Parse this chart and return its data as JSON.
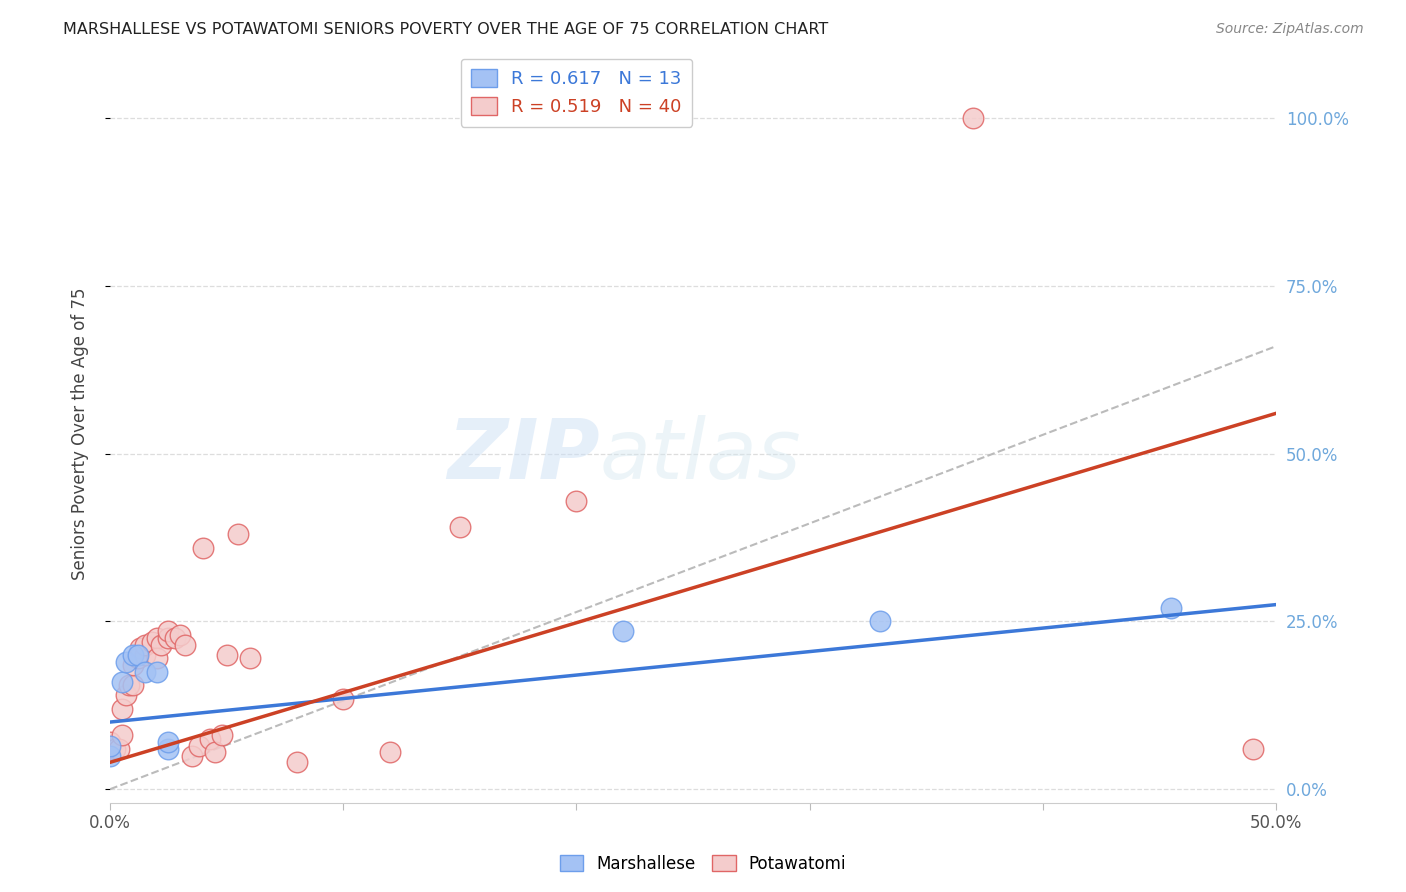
{
  "title": "MARSHALLESE VS POTAWATOMI SENIORS POVERTY OVER THE AGE OF 75 CORRELATION CHART",
  "source": "Source: ZipAtlas.com",
  "ylabel": "Seniors Poverty Over the Age of 75",
  "xlim": [
    0.0,
    0.5
  ],
  "ylim": [
    -0.02,
    1.08
  ],
  "xticks": [
    0.0,
    0.1,
    0.2,
    0.3,
    0.4,
    0.5
  ],
  "xtick_labels": [
    "0.0%",
    "",
    "",
    "",
    "",
    "50.0%"
  ],
  "yticks": [
    0.0,
    0.25,
    0.5,
    0.75,
    1.0
  ],
  "ytick_labels_right": [
    "0.0%",
    "25.0%",
    "50.0%",
    "75.0%",
    "100.0%"
  ],
  "marshallese_color": "#a4c2f4",
  "potawatomi_color": "#f4cccc",
  "marshallese_edge_color": "#6d9eeb",
  "potawatomi_edge_color": "#e06666",
  "marshallese_line_color": "#3c78d8",
  "potawatomi_line_color": "#cc4125",
  "marshallese_R": 0.617,
  "marshallese_N": 13,
  "potawatomi_R": 0.519,
  "potawatomi_N": 40,
  "marshallese_x": [
    0.0,
    0.0,
    0.005,
    0.007,
    0.01,
    0.012,
    0.015,
    0.02,
    0.025,
    0.025,
    0.22,
    0.33,
    0.455
  ],
  "marshallese_y": [
    0.05,
    0.065,
    0.16,
    0.19,
    0.2,
    0.2,
    0.175,
    0.175,
    0.06,
    0.07,
    0.235,
    0.25,
    0.27
  ],
  "potawatomi_x": [
    0.0,
    0.0,
    0.0,
    0.002,
    0.004,
    0.005,
    0.005,
    0.007,
    0.008,
    0.01,
    0.01,
    0.012,
    0.013,
    0.015,
    0.015,
    0.018,
    0.02,
    0.02,
    0.022,
    0.025,
    0.025,
    0.028,
    0.03,
    0.032,
    0.035,
    0.038,
    0.04,
    0.043,
    0.045,
    0.048,
    0.05,
    0.055,
    0.06,
    0.08,
    0.1,
    0.12,
    0.15,
    0.2,
    0.37,
    0.49
  ],
  "potawatomi_y": [
    0.06,
    0.065,
    0.07,
    0.06,
    0.06,
    0.12,
    0.08,
    0.14,
    0.155,
    0.155,
    0.185,
    0.195,
    0.21,
    0.2,
    0.215,
    0.22,
    0.225,
    0.195,
    0.215,
    0.225,
    0.235,
    0.225,
    0.23,
    0.215,
    0.05,
    0.065,
    0.36,
    0.075,
    0.055,
    0.08,
    0.2,
    0.38,
    0.195,
    0.04,
    0.135,
    0.055,
    0.39,
    0.43,
    1.0,
    0.06
  ],
  "marsh_line_x": [
    0.0,
    0.5
  ],
  "marsh_line_y": [
    0.1,
    0.275
  ],
  "pota_line_x": [
    0.0,
    0.5
  ],
  "pota_line_y": [
    0.04,
    0.56
  ],
  "diag_line_x": [
    0.0,
    0.5
  ],
  "diag_line_y": [
    0.0,
    0.66
  ],
  "watermark_zip": "ZIP",
  "watermark_atlas": "atlas",
  "grid_color": "#dddddd",
  "diag_color": "#bbbbbb"
}
